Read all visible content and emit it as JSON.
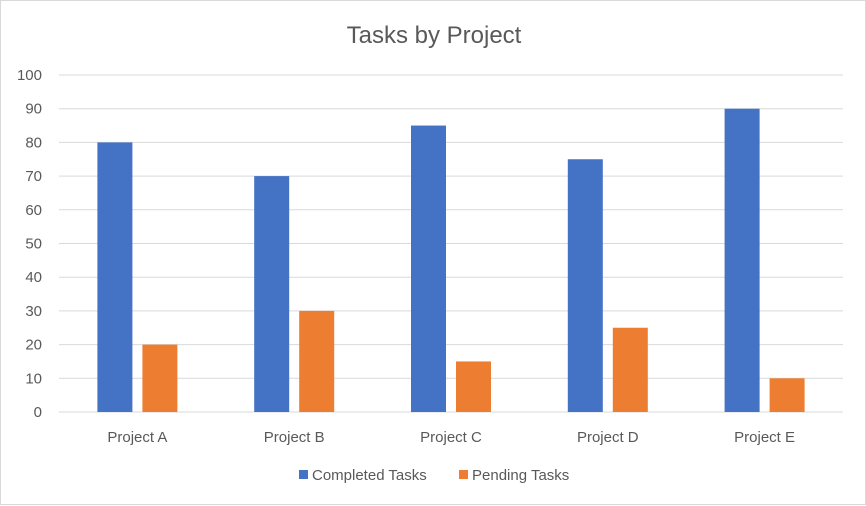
{
  "chart_data": {
    "type": "bar",
    "title": "Tasks by Project",
    "xlabel": "",
    "ylabel": "",
    "categories": [
      "Project A",
      "Project B",
      "Project C",
      "Project D",
      "Project E"
    ],
    "series": [
      {
        "name": "Completed Tasks",
        "values": [
          80,
          70,
          85,
          75,
          90
        ],
        "color": "#4472C4"
      },
      {
        "name": "Pending Tasks",
        "values": [
          20,
          30,
          15,
          25,
          10
        ],
        "color": "#ED7D31"
      }
    ],
    "ylim": [
      0,
      100
    ],
    "yticks": [
      0,
      10,
      20,
      30,
      40,
      50,
      60,
      70,
      80,
      90,
      100
    ],
    "grid": true,
    "legend_position": "bottom"
  }
}
